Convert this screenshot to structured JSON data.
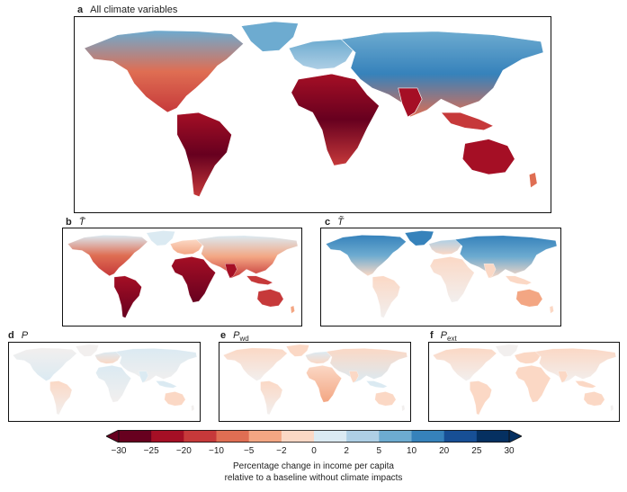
{
  "panels": {
    "a": {
      "letter": "a",
      "title": "All climate variables"
    },
    "b": {
      "letter": "b",
      "symbol": "T̄"
    },
    "c": {
      "letter": "c",
      "symbol": "T̃"
    },
    "d": {
      "letter": "d",
      "symbol": "P"
    },
    "e": {
      "letter": "e",
      "symbol": "P",
      "subscript": "wd"
    },
    "f": {
      "letter": "f",
      "symbol": "P",
      "subscript": "ext"
    }
  },
  "colorbar": {
    "ticks": [
      "−30",
      "−25",
      "−20",
      "−10",
      "−5",
      "−2",
      "0",
      "2",
      "5",
      "10",
      "20",
      "25",
      "30"
    ],
    "colors": [
      "#67001f",
      "#a50f25",
      "#c6393a",
      "#df6e53",
      "#f3a683",
      "#fbd8c5",
      "#f7f7f7",
      "#dbeaf2",
      "#aecfe5",
      "#6dabd0",
      "#3682bb",
      "#174f95",
      "#053061"
    ],
    "label_line1": "Percentage change in income per capita",
    "label_line2": "relative to a baseline without climate impacts"
  }
}
